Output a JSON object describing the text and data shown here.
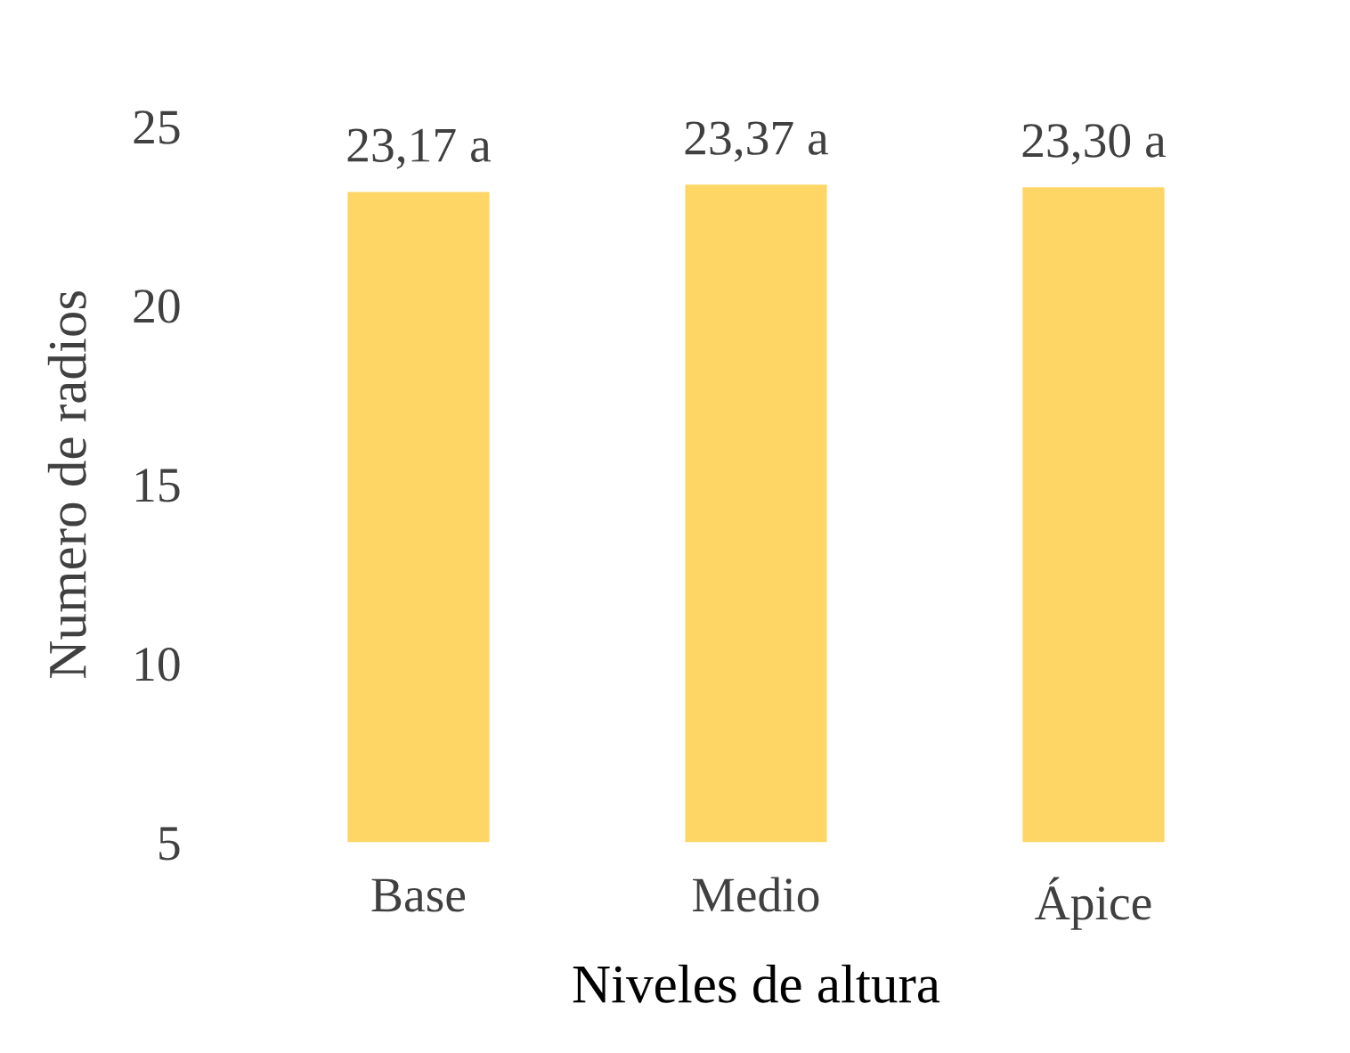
{
  "chart_data": {
    "type": "bar",
    "xlabel": "Niveles de altura",
    "ylabel": "Numero de radios",
    "categories": [
      "Base",
      "Medio",
      "Ápice"
    ],
    "values": [
      23.17,
      23.37,
      23.3
    ],
    "value_labels": [
      "23,17 a",
      "23,37 a",
      "23,30 a"
    ],
    "color": "#fdd666",
    "ylim": [
      5,
      25
    ],
    "yticks": [
      5,
      10,
      15,
      20,
      25
    ],
    "grid": false,
    "legend": false
  }
}
